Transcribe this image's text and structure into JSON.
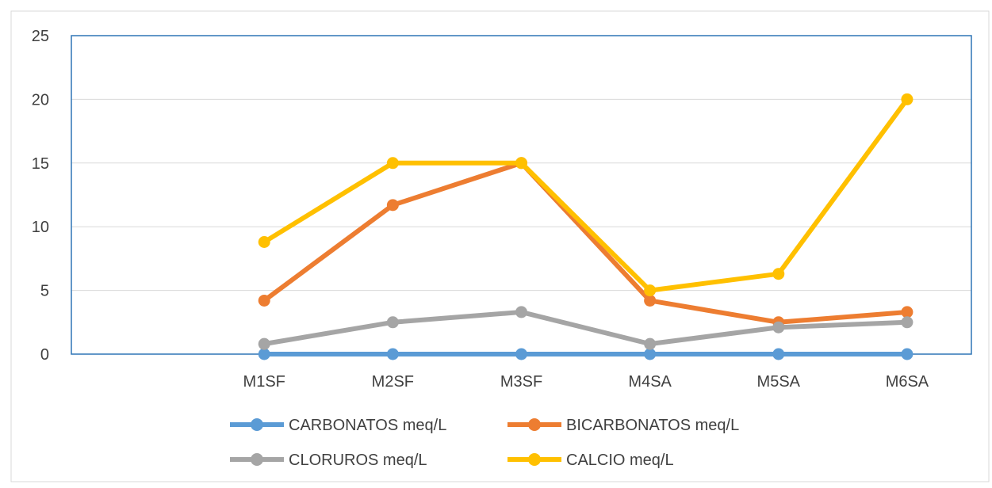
{
  "chart_data": {
    "type": "line",
    "title": "",
    "xlabel": "",
    "ylabel": "",
    "ylim": [
      0,
      25
    ],
    "yticks": [
      0,
      5,
      10,
      15,
      20,
      25
    ],
    "grid": true,
    "legend_position": "bottom",
    "categories": [
      "",
      "M1SF",
      "M2SF",
      "M3SF",
      "M4SA",
      "M5SA",
      "M6SA"
    ],
    "series": [
      {
        "name": "CARBONATOS meq/L",
        "color": "#5B9BD5",
        "values": [
          null,
          0,
          0,
          0,
          0,
          0,
          0
        ]
      },
      {
        "name": "BICARBONATOS meq/L",
        "color": "#ED7D31",
        "values": [
          null,
          4.2,
          11.7,
          15.0,
          4.2,
          2.5,
          3.3
        ]
      },
      {
        "name": "CLORUROS meq/L",
        "color": "#A5A5A5",
        "values": [
          null,
          0.8,
          2.5,
          3.3,
          0.8,
          2.1,
          2.5
        ]
      },
      {
        "name": "CALCIO meq/L",
        "color": "#FFC000",
        "values": [
          null,
          8.8,
          15.0,
          15.0,
          5.0,
          6.3,
          20.0
        ]
      }
    ]
  }
}
